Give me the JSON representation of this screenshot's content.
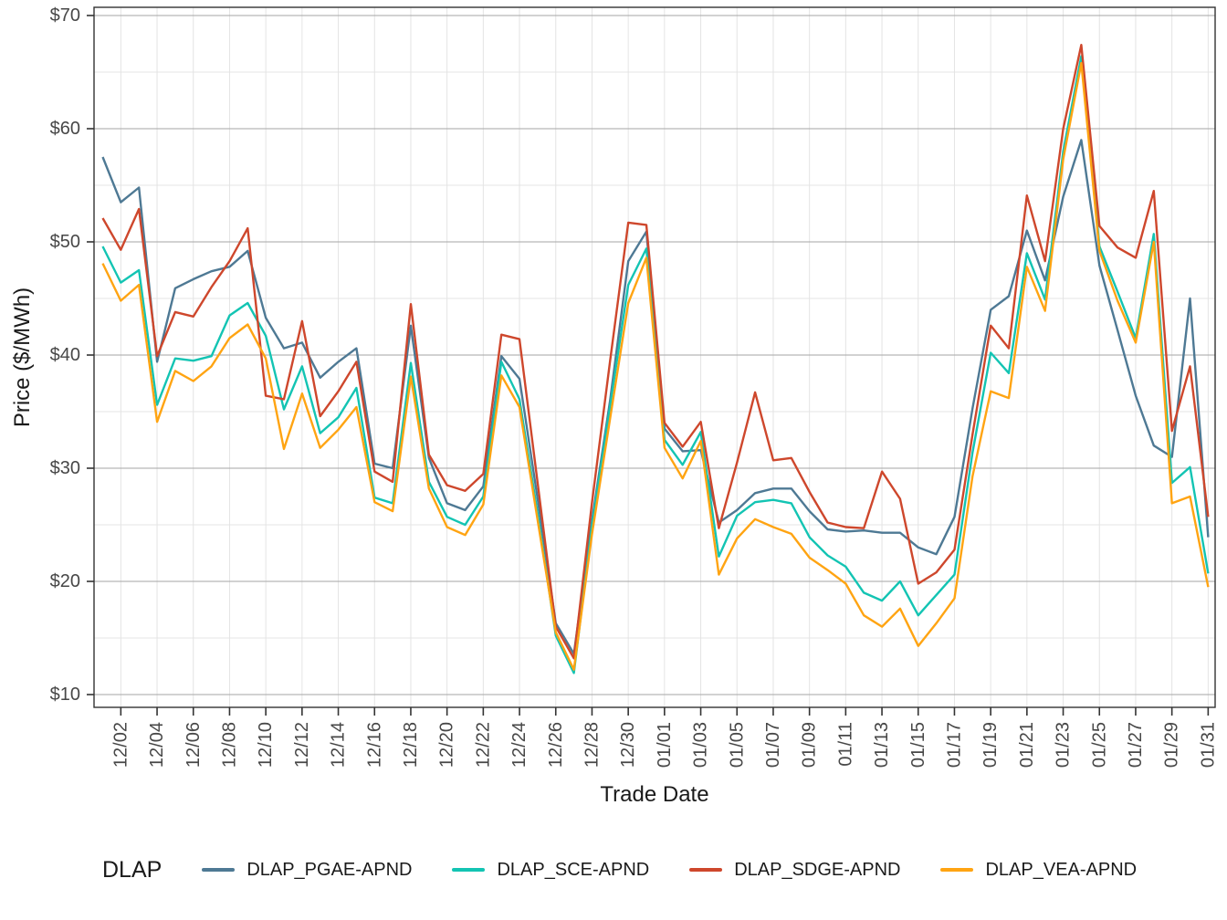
{
  "page": {
    "background": "#FFFFFF"
  },
  "chart_data": {
    "type": "line",
    "title": "",
    "xlabel": "Trade Date",
    "ylabel": "Price ($/MWh)",
    "ylim": [
      10,
      70
    ],
    "grid": "on",
    "legend_position": "bottom",
    "y_ticks": [
      {
        "value": 70,
        "label": "$70"
      },
      {
        "value": 60,
        "label": "$60"
      },
      {
        "value": 50,
        "label": "$50"
      },
      {
        "value": 40,
        "label": "$40"
      },
      {
        "value": 30,
        "label": "$30"
      },
      {
        "value": 20,
        "label": "$20"
      },
      {
        "value": 10,
        "label": "$10"
      }
    ],
    "y_minor_ticks": [
      15,
      25,
      35,
      45,
      55,
      65
    ],
    "x": [
      "12/01",
      "12/02",
      "12/03",
      "12/04",
      "12/05",
      "12/06",
      "12/07",
      "12/08",
      "12/09",
      "12/10",
      "12/11",
      "12/12",
      "12/13",
      "12/14",
      "12/15",
      "12/16",
      "12/17",
      "12/18",
      "12/19",
      "12/20",
      "12/21",
      "12/22",
      "12/23",
      "12/24",
      "12/25",
      "12/26",
      "12/27",
      "12/28",
      "12/29",
      "12/30",
      "12/31",
      "01/01",
      "01/02",
      "01/03",
      "01/04",
      "01/05",
      "01/06",
      "01/07",
      "01/08",
      "01/09",
      "01/10",
      "01/11",
      "01/12",
      "01/13",
      "01/14",
      "01/15",
      "01/16",
      "01/17",
      "01/18",
      "01/19",
      "01/20",
      "01/21",
      "01/22",
      "01/23",
      "01/24",
      "01/25",
      "01/26",
      "01/27",
      "01/28",
      "01/29",
      "01/30",
      "01/31"
    ],
    "x_tick_labels": [
      "12/02",
      "12/04",
      "12/06",
      "12/08",
      "12/10",
      "12/12",
      "12/14",
      "12/16",
      "12/18",
      "12/20",
      "12/22",
      "12/24",
      "12/26",
      "12/28",
      "12/30",
      "01/01",
      "01/03",
      "01/05",
      "01/07",
      "01/09",
      "01/11",
      "01/13",
      "01/15",
      "01/17",
      "01/19",
      "01/21",
      "01/23",
      "01/25",
      "01/27",
      "01/29",
      "01/31"
    ],
    "series": [
      {
        "name": "DLAP_PGAE-APND",
        "color": "#4E7994",
        "values": [
          57.5,
          53.5,
          54.8,
          39.4,
          45.9,
          46.7,
          47.4,
          47.8,
          49.2,
          43.3,
          40.6,
          41.1,
          38.0,
          39.4,
          40.6,
          30.4,
          30.0,
          42.6,
          30.9,
          26.9,
          26.3,
          28.4,
          39.9,
          37.9,
          27.3,
          16.3,
          13.6,
          25.4,
          36.0,
          48.3,
          50.9,
          33.5,
          31.5,
          31.6,
          25.2,
          26.3,
          27.8,
          28.2,
          28.2,
          26.2,
          24.6,
          24.4,
          24.5,
          24.3,
          24.3,
          23.0,
          22.4,
          25.7,
          35.3,
          44.0,
          45.2,
          51.0,
          46.6,
          54.0,
          59.0,
          47.9,
          42.2,
          36.4,
          32.0,
          31.0,
          45.0,
          23.9
        ]
      },
      {
        "name": "DLAP_SCE-APND",
        "color": "#13C4B3",
        "values": [
          49.6,
          46.4,
          47.5,
          35.6,
          39.7,
          39.5,
          39.9,
          43.5,
          44.6,
          41.7,
          35.2,
          39.0,
          33.1,
          34.5,
          37.1,
          27.4,
          26.9,
          39.3,
          28.8,
          25.7,
          25.0,
          27.5,
          39.4,
          36.1,
          26.0,
          15.2,
          11.9,
          25.0,
          35.5,
          46.2,
          49.4,
          32.5,
          30.3,
          33.2,
          22.2,
          25.8,
          27.0,
          27.2,
          26.9,
          23.9,
          22.3,
          21.3,
          19.0,
          18.3,
          20.0,
          17.0,
          18.8,
          20.6,
          31.4,
          40.2,
          38.4,
          49.0,
          44.9,
          58.0,
          66.4,
          49.6,
          45.6,
          41.5,
          50.7,
          28.7,
          30.1,
          20.7
        ]
      },
      {
        "name": "DLAP_SDGE-APND",
        "color": "#CE472C",
        "values": [
          52.1,
          49.3,
          52.9,
          39.9,
          43.8,
          43.4,
          46.0,
          48.3,
          51.2,
          36.4,
          36.1,
          43.0,
          34.6,
          36.8,
          39.4,
          29.7,
          28.8,
          44.5,
          31.2,
          28.5,
          28.0,
          29.5,
          41.8,
          41.4,
          28.7,
          16.0,
          13.2,
          27.0,
          39.5,
          51.7,
          51.5,
          34.0,
          31.9,
          34.1,
          24.7,
          30.5,
          36.7,
          30.7,
          30.9,
          27.9,
          25.2,
          24.8,
          24.7,
          29.7,
          27.3,
          19.8,
          20.8,
          22.8,
          33.0,
          42.6,
          40.6,
          54.1,
          48.3,
          60.0,
          67.4,
          51.4,
          49.5,
          48.6,
          54.5,
          33.3,
          39.0,
          25.7
        ]
      },
      {
        "name": "DLAP_VEA-APND",
        "color": "#FFA412",
        "values": [
          48.1,
          44.8,
          46.2,
          34.1,
          38.6,
          37.7,
          39.0,
          41.5,
          42.7,
          39.7,
          31.7,
          36.6,
          31.8,
          33.4,
          35.4,
          27.0,
          26.2,
          38.1,
          28.2,
          24.8,
          24.1,
          26.8,
          38.2,
          35.4,
          25.4,
          15.5,
          12.2,
          24.2,
          34.4,
          44.6,
          48.6,
          31.8,
          29.1,
          32.4,
          20.6,
          23.8,
          25.5,
          24.8,
          24.2,
          22.1,
          21.0,
          19.8,
          17.0,
          16.0,
          17.6,
          14.3,
          16.3,
          18.5,
          29.3,
          36.8,
          36.2,
          47.8,
          43.9,
          57.3,
          65.8,
          49.2,
          44.8,
          41.1,
          50.0,
          26.9,
          27.5,
          19.5
        ]
      }
    ],
    "legend": {
      "title": "DLAP",
      "entries": [
        "DLAP_PGAE-APND",
        "DLAP_SCE-APND",
        "DLAP_SDGE-APND",
        "DLAP_VEA-APND"
      ]
    },
    "style": {
      "panel_border_color": "#333333",
      "major_grid_color": "#A6A6A6",
      "minor_grid_color": "#E4E4E4",
      "tick_color": "#333333",
      "tick_label_color": "#474747",
      "axis_title_color": "#1a1a1a"
    }
  }
}
